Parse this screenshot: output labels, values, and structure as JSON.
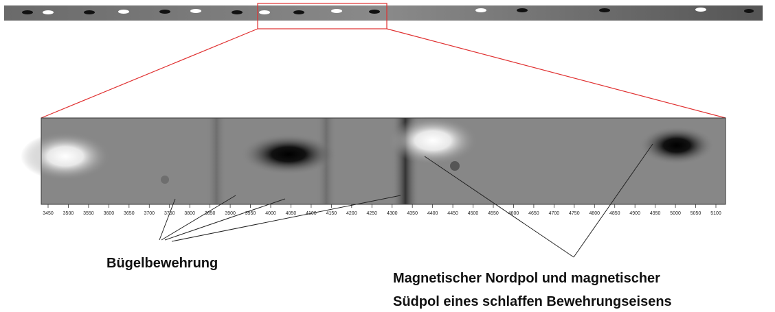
{
  "axis": {
    "ticks": [
      3450,
      3500,
      3550,
      3600,
      3650,
      3700,
      3750,
      3800,
      3850,
      3900,
      3950,
      4000,
      4050,
      4100,
      4150,
      4200,
      4250,
      4300,
      4350,
      4400,
      4450,
      4500,
      4550,
      4600,
      4650,
      4700,
      4750,
      4800,
      4850,
      4900,
      4950,
      5000,
      5050,
      5100
    ]
  },
  "labels": {
    "stirrups": "Bügelbewehrung",
    "poles": [
      "Magnetischer Nordpol und magnetischer",
      "Südpol eines schlaffen Bewehrungseisens"
    ]
  }
}
